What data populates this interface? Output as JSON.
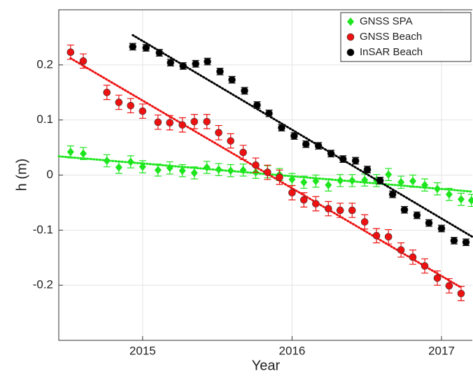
{
  "chart_data": {
    "type": "scatter",
    "xlabel": "Year",
    "ylabel": "h (m)",
    "xlim": [
      2014.439,
      2017.206
    ],
    "ylim": [
      -0.3,
      0.3
    ],
    "xticks": [
      2015,
      2016,
      2017
    ],
    "yticks": [
      0.2,
      0.1,
      0,
      -0.1,
      -0.2
    ],
    "grid": true,
    "legend": "upper right",
    "series": [
      {
        "name": "GNSS SPA",
        "color": "#1ee61e",
        "marker": "diamond",
        "error": 0.011,
        "x": [
          2014.518,
          2014.603,
          2014.761,
          2014.841,
          2014.92,
          2015.0,
          2015.103,
          2015.182,
          2015.266,
          2015.346,
          2015.43,
          2015.509,
          2015.589,
          2015.673,
          2015.757,
          2015.836,
          2015.916,
          2016.0,
          2016.079,
          2016.159,
          2016.243,
          2016.322,
          2016.402,
          2016.486,
          2016.565,
          2016.645,
          2016.729,
          2016.808,
          2016.888,
          2016.972,
          2017.051,
          2017.131,
          2017.2
        ],
        "values": [
          0.042,
          0.039,
          0.026,
          0.014,
          0.024,
          0.015,
          0.009,
          0.013,
          0.008,
          0.004,
          0.014,
          0.01,
          0.008,
          0.009,
          0.005,
          0.006,
          0.001,
          -0.008,
          -0.013,
          -0.011,
          -0.018,
          -0.01,
          -0.01,
          -0.009,
          -0.01,
          0.001,
          -0.013,
          -0.011,
          -0.018,
          -0.025,
          -0.035,
          -0.044,
          -0.046
        ],
        "trend": {
          "x": [
            2014.439,
            2017.206
          ],
          "values": [
            0.034,
            -0.03
          ]
        }
      },
      {
        "name": "GNSS Beach",
        "color": "#ee1111",
        "marker": "circle",
        "error": 0.013,
        "x": [
          2014.518,
          2014.603,
          2014.761,
          2014.841,
          2014.92,
          2015.0,
          2015.103,
          2015.182,
          2015.266,
          2015.346,
          2015.43,
          2015.509,
          2015.589,
          2015.673,
          2015.757,
          2015.836,
          2015.916,
          2016.0,
          2016.079,
          2016.159,
          2016.243,
          2016.322,
          2016.402,
          2016.486,
          2016.565,
          2016.645,
          2016.729,
          2016.808,
          2016.888,
          2016.972,
          2017.051,
          2017.131
        ],
        "values": [
          0.223,
          0.207,
          0.15,
          0.132,
          0.126,
          0.116,
          0.096,
          0.095,
          0.091,
          0.097,
          0.097,
          0.077,
          0.062,
          0.041,
          0.018,
          0.005,
          -0.004,
          -0.032,
          -0.045,
          -0.052,
          -0.061,
          -0.064,
          -0.064,
          -0.085,
          -0.11,
          -0.112,
          -0.136,
          -0.149,
          -0.165,
          -0.187,
          -0.201,
          -0.215
        ],
        "trend": {
          "x": [
            2014.518,
            2017.131
          ],
          "values": [
            0.212,
            -0.204
          ]
        }
      },
      {
        "name": "InSAR Beach",
        "color": "#000000",
        "marker": "circle",
        "error": 0.006,
        "x": [
          2014.934,
          2015.023,
          2015.112,
          2015.187,
          2015.271,
          2015.355,
          2015.434,
          2015.518,
          2015.598,
          2015.682,
          2015.766,
          2015.846,
          2015.93,
          2016.014,
          2016.093,
          2016.177,
          2016.261,
          2016.341,
          2016.425,
          2016.504,
          2016.589,
          2016.673,
          2016.752,
          2016.836,
          2016.916,
          2017.0,
          2017.084,
          2017.164
        ],
        "values": [
          0.233,
          0.231,
          0.222,
          0.204,
          0.198,
          0.202,
          0.206,
          0.188,
          0.173,
          0.153,
          0.127,
          0.112,
          0.086,
          0.071,
          0.056,
          0.053,
          0.039,
          0.029,
          0.026,
          0.01,
          -0.01,
          -0.035,
          -0.063,
          -0.073,
          -0.087,
          -0.097,
          -0.119,
          -0.122
        ],
        "trend": {
          "x": [
            2014.934,
            2017.206
          ],
          "values": [
            0.254,
            -0.112
          ]
        }
      }
    ]
  }
}
